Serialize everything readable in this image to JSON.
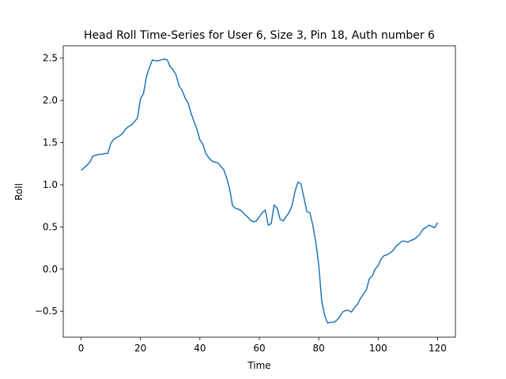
{
  "chart_data": {
    "type": "line",
    "title": "Head Roll Time-Series for User 6, Size 3, Pin 18, Auth number 6",
    "xlabel": "Time",
    "ylabel": "Roll",
    "x": [
      0,
      1,
      2,
      3,
      4,
      5,
      6,
      7,
      8,
      9,
      10,
      11,
      12,
      13,
      14,
      15,
      16,
      17,
      18,
      19,
      20,
      21,
      22,
      23,
      24,
      25,
      26,
      27,
      28,
      29,
      30,
      31,
      32,
      33,
      34,
      35,
      36,
      37,
      38,
      39,
      40,
      41,
      42,
      43,
      44,
      45,
      46,
      47,
      48,
      49,
      50,
      51,
      52,
      53,
      54,
      55,
      56,
      57,
      58,
      59,
      60,
      61,
      62,
      63,
      64,
      65,
      66,
      67,
      68,
      69,
      70,
      71,
      72,
      73,
      74,
      75,
      76,
      77,
      78,
      79,
      80,
      81,
      82,
      83,
      84,
      85,
      86,
      87,
      88,
      89,
      90,
      91,
      92,
      93,
      94,
      95,
      96,
      97,
      98,
      99,
      100,
      101,
      102,
      103,
      104,
      105,
      106,
      107,
      108,
      109,
      110,
      111,
      112,
      113,
      114,
      115,
      116,
      117,
      118,
      119,
      120
    ],
    "series": [
      {
        "name": "Roll",
        "color": "#1f77b4",
        "values": [
          1.17,
          1.2,
          1.23,
          1.27,
          1.34,
          1.35,
          1.36,
          1.36,
          1.37,
          1.37,
          1.49,
          1.54,
          1.56,
          1.58,
          1.61,
          1.66,
          1.69,
          1.71,
          1.75,
          1.79,
          2.02,
          2.08,
          2.28,
          2.39,
          2.48,
          2.47,
          2.47,
          2.48,
          2.49,
          2.48,
          2.4,
          2.36,
          2.3,
          2.17,
          2.12,
          2.03,
          1.97,
          1.85,
          1.75,
          1.66,
          1.53,
          1.48,
          1.37,
          1.32,
          1.28,
          1.27,
          1.26,
          1.22,
          1.18,
          1.08,
          0.95,
          0.75,
          0.72,
          0.71,
          0.69,
          0.65,
          0.62,
          0.58,
          0.56,
          0.57,
          0.62,
          0.67,
          0.7,
          0.52,
          0.54,
          0.76,
          0.72,
          0.59,
          0.57,
          0.62,
          0.67,
          0.75,
          0.92,
          1.03,
          1.01,
          0.85,
          0.68,
          0.67,
          0.52,
          0.32,
          0.05,
          -0.38,
          -0.55,
          -0.64,
          -0.63,
          -0.63,
          -0.61,
          -0.57,
          -0.51,
          -0.49,
          -0.49,
          -0.51,
          -0.46,
          -0.42,
          -0.35,
          -0.3,
          -0.25,
          -0.12,
          -0.08,
          0.0,
          0.04,
          0.12,
          0.16,
          0.17,
          0.19,
          0.22,
          0.27,
          0.3,
          0.33,
          0.33,
          0.32,
          0.34,
          0.35,
          0.38,
          0.41,
          0.47,
          0.49,
          0.52,
          0.51,
          0.49,
          0.55
        ]
      }
    ],
    "xlim": [
      -6,
      126
    ],
    "ylim": [
      -0.807,
      2.647
    ],
    "xticks": [
      0,
      20,
      40,
      60,
      80,
      100,
      120
    ],
    "yticks": [
      {
        "value": -0.5,
        "label": "−0.5"
      },
      {
        "value": 0,
        "label": "0.0"
      },
      0.5,
      {
        "value": 1,
        "label": "1.0"
      },
      1.5,
      {
        "value": 2,
        "label": "2.0"
      },
      2.5
    ]
  }
}
